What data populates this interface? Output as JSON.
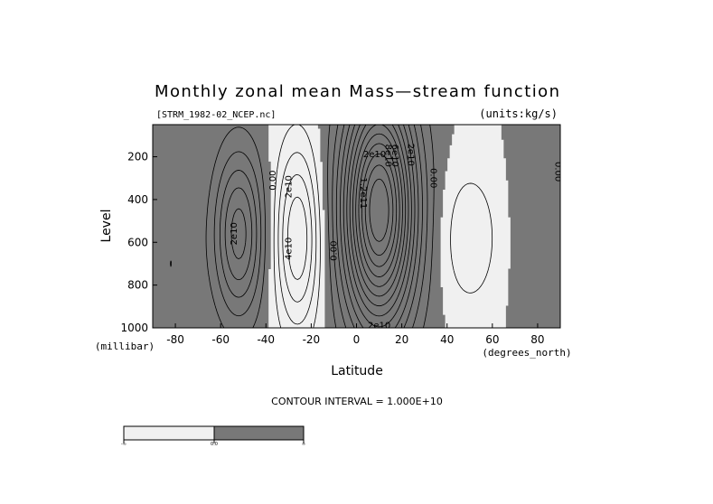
{
  "chart_data": {
    "type": "contour",
    "title": "Monthly zonal mean Mass—stream function",
    "source_file": "[STRM_1982-02_NCEP.nc]",
    "units": "(units:kg/s)",
    "xlabel": "Latitude",
    "x_unit": "(degrees_north)",
    "ylabel": "Level",
    "y_unit": "(millibar)",
    "xlim": [
      -90,
      90
    ],
    "ylim": [
      1000,
      50
    ],
    "x_ticks": [
      -80,
      -60,
      -40,
      -20,
      0,
      20,
      40,
      60,
      80
    ],
    "y_ticks": [
      200,
      400,
      600,
      800,
      1000
    ],
    "contour_interval_text": "CONTOUR INTERVAL = 1.000E+10",
    "contour_interval": 10000000000.0,
    "shading": {
      "negative": "#f0f0f0",
      "positive": "#787878"
    },
    "contour_labels": [
      {
        "text": "2e10",
        "lat": -54,
        "level": 560,
        "rot": -90
      },
      {
        "text": "0.00",
        "lat": -37,
        "level": 310,
        "rot": -90
      },
      {
        "text": "2e10",
        "lat": -30,
        "level": 340,
        "rot": -90
      },
      {
        "text": "4e10",
        "lat": -30,
        "level": 630,
        "rot": -90
      },
      {
        "text": "0.00",
        "lat": -10,
        "level": 640,
        "rot": -90
      },
      {
        "text": "2e10",
        "lat": 8,
        "level": 190,
        "rot": 0
      },
      {
        "text": "6e10",
        "lat": 17,
        "level": 195,
        "rot": 90
      },
      {
        "text": "8e10",
        "lat": 14,
        "level": 195,
        "rot": 90
      },
      {
        "text": "2e10",
        "lat": 24,
        "level": 190,
        "rot": 90
      },
      {
        "text": "1.2e11",
        "lat": 3,
        "level": 370,
        "rot": 90
      },
      {
        "text": "0.00",
        "lat": 34,
        "level": 300,
        "rot": 90
      },
      {
        "text": "0.00",
        "lat": 89,
        "level": 270,
        "rot": 90
      },
      {
        "text": "2e10",
        "lat": 10,
        "level": 990,
        "rot": 0
      }
    ],
    "colorbar": {
      "labels": [
        "-∞",
        "0.0",
        "∞"
      ]
    }
  }
}
